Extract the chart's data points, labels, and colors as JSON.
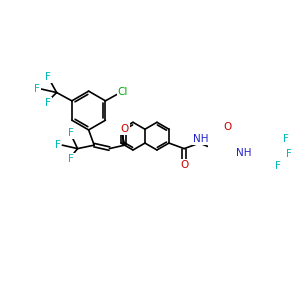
{
  "background": "#ffffff",
  "bond_color": "#000000",
  "bond_width": 1.2,
  "fig_width": 3.0,
  "fig_height": 3.0,
  "dpi": 100,
  "xlim": [
    0,
    300
  ],
  "ylim": [
    0,
    300
  ]
}
